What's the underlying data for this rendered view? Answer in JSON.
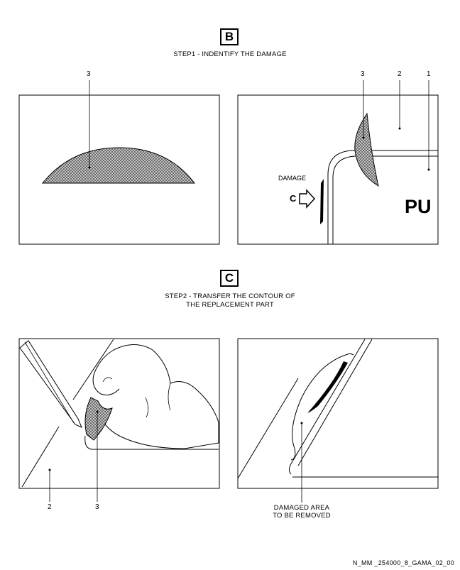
{
  "step1": {
    "letter": "B",
    "title": "STEP1 - INDENTIFY THE DAMAGE",
    "callouts": [
      "3",
      "3",
      "2",
      "1"
    ],
    "damage_label": "DAMAGE",
    "arrow_label": "C",
    "material_label": "PU"
  },
  "step2": {
    "letter": "C",
    "title_line1": "STEP2 - TRANSFER THE CONTOUR OF",
    "title_line2": "THE REPLACEMENT PART",
    "callouts": [
      "2",
      "3"
    ],
    "damaged_area_line1": "DAMAGED AREA",
    "damaged_area_line2": "TO BE REMOVED"
  },
  "footer_code": "N_MM _254000_8_GAMA_02_00"
}
